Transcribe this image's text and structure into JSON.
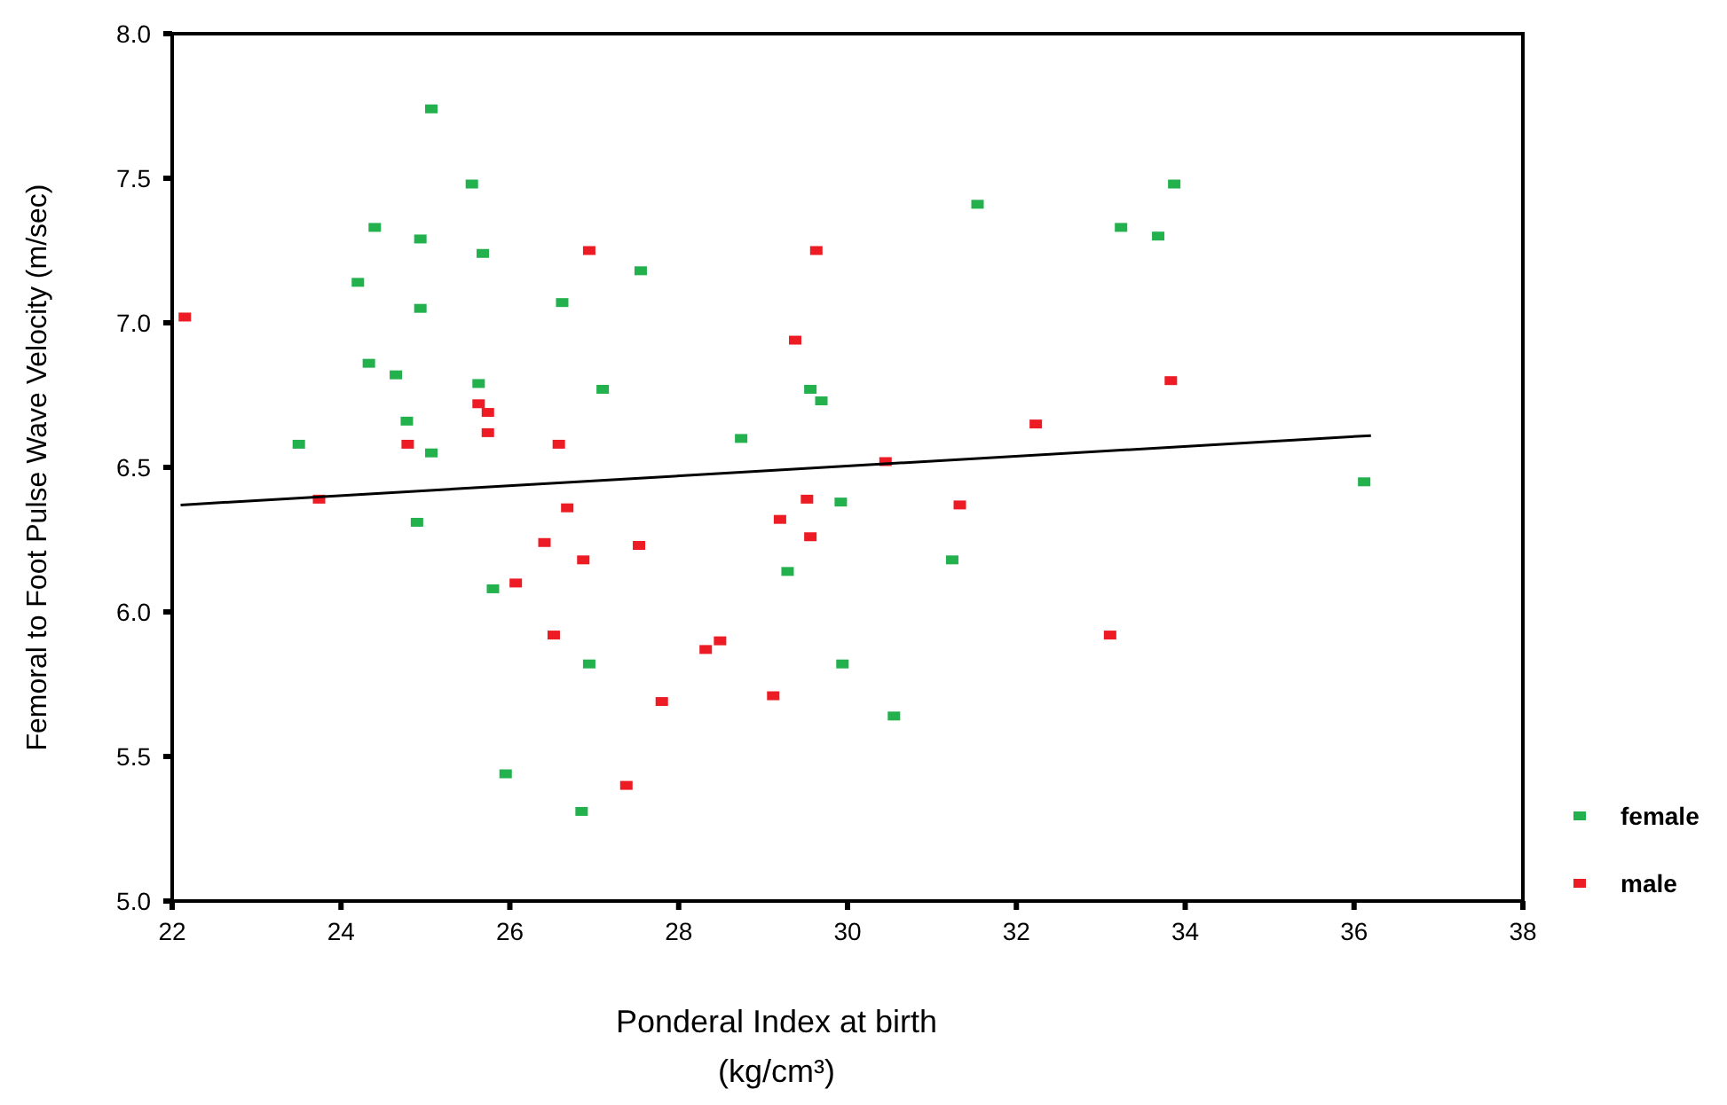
{
  "chart_data": {
    "type": "scatter",
    "xlabel": "Ponderal Index at birth\n(kg/cm³)",
    "ylabel": "Femoral to Foot Pulse Wave Velocity (m/sec)",
    "xlim": [
      22,
      38
    ],
    "xticks": [
      22,
      24,
      26,
      28,
      30,
      32,
      34,
      36,
      38
    ],
    "ylim": [
      5.0,
      8.0
    ],
    "yticks": [
      {
        "value": 5,
        "label": "5.0"
      },
      {
        "value": 5.5,
        "label": "5.5"
      },
      {
        "value": 6,
        "label": "6.0"
      },
      {
        "value": 6.5,
        "label": "6.5"
      },
      {
        "value": 7,
        "label": "7.0"
      },
      {
        "value": 7.5,
        "label": "7.5"
      },
      {
        "value": 8,
        "label": "8.0"
      }
    ],
    "grid": false,
    "legend": "right",
    "marker": "square",
    "series": [
      {
        "name": "female",
        "color": "#22b14c",
        "x": [
          23.5,
          25.07,
          25.55,
          24.4,
          24.94,
          25.68,
          24.2,
          24.94,
          26.62,
          27.55,
          24.33,
          24.65,
          25.63,
          27.1,
          24.78,
          25.07,
          28.74,
          29.56,
          29.69,
          24.9,
          29.92,
          25.8,
          29.29,
          26.94,
          25.95,
          26.85,
          29.94,
          30.55,
          31.24,
          31.54,
          33.87,
          33.24,
          33.68,
          36.12
        ],
        "values": [
          6.58,
          7.74,
          7.48,
          7.33,
          7.29,
          7.24,
          7.14,
          7.05,
          7.07,
          7.18,
          6.86,
          6.82,
          6.79,
          6.77,
          6.66,
          6.55,
          6.6,
          6.77,
          6.73,
          6.31,
          6.38,
          6.08,
          6.14,
          5.82,
          5.44,
          5.31,
          5.82,
          5.64,
          6.18,
          7.41,
          7.48,
          7.33,
          7.3,
          6.45
        ]
      },
      {
        "name": "male",
        "color": "#ed1c24",
        "x": [
          22.15,
          23.74,
          24.79,
          25.63,
          25.74,
          25.74,
          26.58,
          26.94,
          29.63,
          29.38,
          26.68,
          29.52,
          29.2,
          26.41,
          26.87,
          27.53,
          26.07,
          29.56,
          26.52,
          28.32,
          28.49,
          27.8,
          29.12,
          27.38,
          30.45,
          32.23,
          33.83,
          31.33,
          33.11
        ],
        "values": [
          7.02,
          6.39,
          6.58,
          6.72,
          6.69,
          6.62,
          6.58,
          7.25,
          7.25,
          6.94,
          6.36,
          6.39,
          6.32,
          6.24,
          6.18,
          6.23,
          6.1,
          6.26,
          5.92,
          5.87,
          5.9,
          5.69,
          5.71,
          5.4,
          6.52,
          6.65,
          6.8,
          6.37,
          5.92
        ]
      },
      {
        "type": "line",
        "color": "#000000",
        "marker": "none",
        "x": [
          22.1,
          36.2
        ],
        "values": [
          6.37,
          6.61
        ]
      }
    ]
  }
}
